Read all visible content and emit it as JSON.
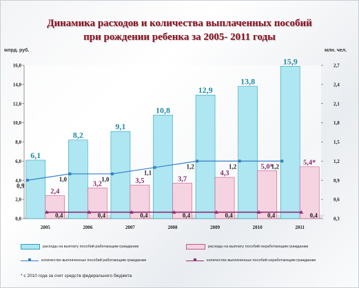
{
  "chart_data": {
    "type": "bar",
    "title_line1": "Динамика расходов и количества выплаченных пособий",
    "title_line2": "при рождении ребенка за 2005- 2011 годы",
    "y_left_unit": "млрд. руб.",
    "y_right_unit": "млн. чел.",
    "categories": [
      "2005",
      "2006",
      "2007",
      "2008",
      "2009",
      "2010",
      "2011"
    ],
    "left_ticks": [
      "0,0",
      "2,0",
      "4,0",
      "6,0",
      "8,0",
      "10,0",
      "12,0",
      "14,0",
      "16,0"
    ],
    "right_ticks": [
      "0,3",
      "0,6",
      "0,9",
      "1,2",
      "1,5",
      "1,8",
      "2,1",
      "2,4",
      "2,7"
    ],
    "ylim_left": [
      0,
      16
    ],
    "ylim_right": [
      0.3,
      2.7
    ],
    "series": [
      {
        "name": "расходы на выплату пособий работающим гражданам",
        "kind": "bar",
        "axis": "left",
        "color": "#aee6f2",
        "values": [
          6.1,
          8.2,
          9.1,
          10.8,
          12.9,
          13.8,
          15.9
        ],
        "labels": [
          "6,1",
          "8,2",
          "9,1",
          "10,8",
          "12,9",
          "13,8",
          "15,9"
        ]
      },
      {
        "name": "расходы на выплату пособий неработающим гражданам",
        "kind": "bar",
        "axis": "left",
        "color": "#f6d3e1",
        "values": [
          2.4,
          3.2,
          3.5,
          3.7,
          4.3,
          5.0,
          5.4
        ],
        "labels": [
          "2,4",
          "3,2",
          "3,5",
          "3,7",
          "4,3",
          "5,0*",
          "5,4*"
        ]
      },
      {
        "name": "количество выплаченных пособий работающим гражданам",
        "kind": "line",
        "axis": "right",
        "color": "#2f7fc6",
        "values": [
          0.9,
          1.0,
          1.0,
          1.1,
          1.2,
          1.2,
          1.2
        ],
        "labels": [
          "0,9",
          "1,0",
          "1,0",
          "1,1",
          "1,2",
          "1,2",
          "1,2"
        ]
      },
      {
        "name": "количество выплаченных пособий неработающим гражданам",
        "kind": "line",
        "axis": "right",
        "color": "#8c2f6e",
        "values": [
          0.4,
          0.4,
          0.4,
          0.4,
          0.4,
          0.4,
          0.4
        ],
        "labels": [
          "0,4",
          "0,4",
          "0,4",
          "0,4",
          "0,4",
          "0,4",
          "0,4"
        ]
      }
    ],
    "footnote": "* с 2010 года за счет средств федерального бюджета",
    "legend_position": "bottom"
  }
}
